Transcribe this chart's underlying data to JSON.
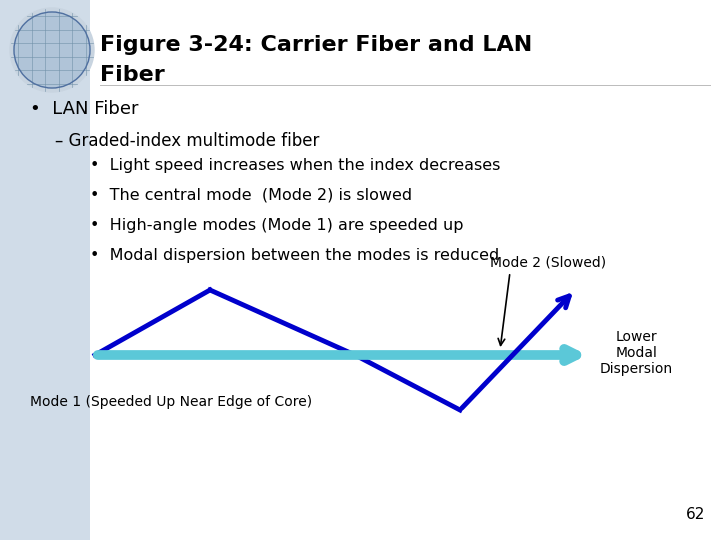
{
  "title_line1": "Figure 3-24: Carrier Fiber and LAN",
  "title_line2": "Fiber",
  "bullet1": "LAN Fiber",
  "sub1": "– Graded-index multimode fiber",
  "sub_bullets": [
    "Light speed increases when the index decreases",
    "The central mode  (Mode 2) is slowed",
    "High-angle modes (Mode 1) are speeded up",
    "Modal dispersion between the modes is reduced"
  ],
  "mode2_label": "Mode 2 (Slowed)",
  "mode1_label": "Mode 1 (Speeded Up Near Edge of Core)",
  "lower_label": "Lower\nModal\nDispersion",
  "page_num": "62",
  "title_color": "#000000",
  "text_color": "#000000",
  "blue_color": "#0000cc",
  "cyan_color": "#5bc8d8",
  "arrow_lw": 3.5,
  "cyan_lw": 7,
  "globe_bg": "#c8d4e0",
  "left_bg": "#d0dce8"
}
